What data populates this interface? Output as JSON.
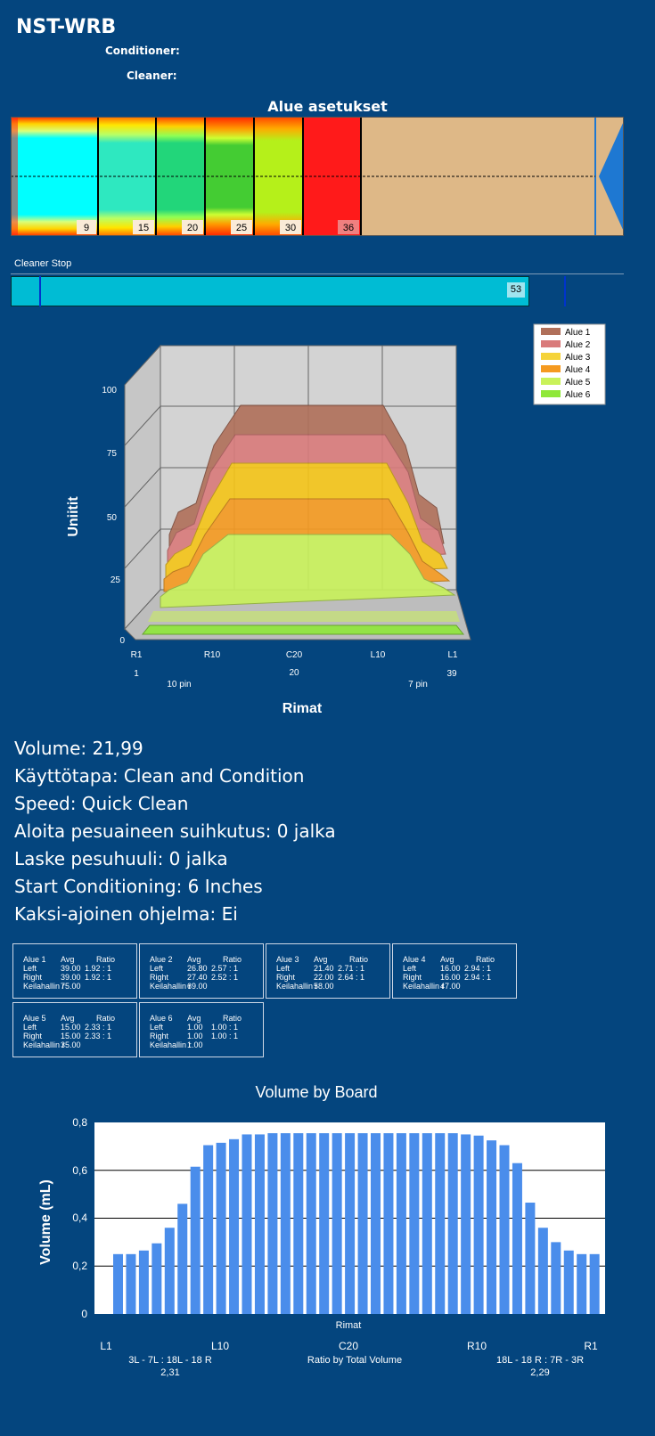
{
  "header": {
    "title": "NST-WRB",
    "conditioner_label": "Conditioner:",
    "cleaner_label": "Cleaner:"
  },
  "zones_section": {
    "title": "Alue asetukset",
    "boundaries": [
      "9",
      "15",
      "20",
      "25",
      "30",
      "36"
    ]
  },
  "cleaner_stop": {
    "label": "Cleaner Stop",
    "value": "53"
  },
  "chart3d": {
    "ylabel": "Uniitit",
    "xlabel": "Rimat",
    "yticks": [
      "100",
      "75",
      "50",
      "25",
      "0"
    ],
    "xticks": [
      "R1",
      "R10",
      "C20",
      "L10",
      "L1"
    ],
    "xnums": [
      "1",
      "20",
      "39"
    ],
    "pins": [
      "10 pin",
      "7 pin"
    ],
    "legend": [
      "Alue 1",
      "Alue 2",
      "Alue 3",
      "Alue 4",
      "Alue 5",
      "Alue 6"
    ],
    "colors": [
      "#B0705A",
      "#D97B7B",
      "#F5C518",
      "#F59A20",
      "#C9F25A",
      "#8FE83A"
    ]
  },
  "chart_data": [
    {
      "type": "area",
      "title": "",
      "xlabel": "Rimat",
      "ylabel": "Uniitit",
      "ylim": [
        0,
        100
      ],
      "x": [
        "R1",
        "R10",
        "C20",
        "L10",
        "L1"
      ],
      "series": [
        {
          "name": "Alue 1",
          "values": [
            39,
            88,
            88,
            88,
            39
          ]
        },
        {
          "name": "Alue 2",
          "values": [
            26.8,
            75,
            75,
            75,
            27.4
          ]
        },
        {
          "name": "Alue 3",
          "values": [
            21.4,
            62,
            62,
            62,
            22
          ]
        },
        {
          "name": "Alue 4",
          "values": [
            16,
            49,
            49,
            49,
            16
          ]
        },
        {
          "name": "Alue 5",
          "values": [
            15,
            35,
            35,
            35,
            15
          ]
        },
        {
          "name": "Alue 6",
          "values": [
            1,
            1,
            1,
            1,
            1
          ]
        }
      ]
    },
    {
      "type": "bar",
      "title": "Volume by Board",
      "xlabel": "Rimat",
      "ylabel": "Volume (mL)",
      "ylim": [
        0,
        0.8
      ],
      "yticks": [
        "0,8",
        "0,6",
        "0,4",
        "0,2",
        "0"
      ],
      "values": [
        0.25,
        0.25,
        0.265,
        0.295,
        0.36,
        0.46,
        0.615,
        0.705,
        0.715,
        0.73,
        0.75,
        0.75,
        0.755,
        0.755,
        0.755,
        0.755,
        0.755,
        0.755,
        0.755,
        0.755,
        0.755,
        0.755,
        0.755,
        0.755,
        0.755,
        0.755,
        0.755,
        0.75,
        0.745,
        0.725,
        0.705,
        0.63,
        0.465,
        0.36,
        0.3,
        0.265,
        0.25,
        0.25
      ],
      "bottom_labels": [
        "L1",
        "L10",
        "C20",
        "R10",
        "R1"
      ],
      "ratio_title": "Ratio by Total Volume",
      "left_ratio_label": "3L - 7L : 18L - 18 R",
      "left_ratio_value": "2,31",
      "right_ratio_label": "18L - 18 R : 7R - 3R",
      "right_ratio_value": "2,29"
    }
  ],
  "info": {
    "volume": "Volume: 21,99",
    "mode": "Käyttötapa: Clean and Condition",
    "speed": "Speed: Quick Clean",
    "spray": "Aloita pesuaineen suihkutus: 0 jalka",
    "lower": "Laske pesuhuuli: 0 jalka",
    "start": "Start Conditioning: 6 Inches",
    "dual": "Kaksi-ajoinen ohjelma: Ei"
  },
  "zone_table": [
    {
      "name": "Alue 1",
      "avg_h": "Avg",
      "ratio_h": "Ratio",
      "left": "Left",
      "left_avg": "39.00",
      "left_ratio": "1.92 : 1",
      "right": "Right",
      "right_avg": "39.00",
      "right_ratio": "1.92 : 1",
      "keil": "Keilahallin r",
      "keil_v": "75.00"
    },
    {
      "name": "Alue 2",
      "avg_h": "Avg",
      "ratio_h": "Ratio",
      "left": "Left",
      "left_avg": "26.80",
      "left_ratio": "2.57 : 1",
      "right": "Right",
      "right_avg": "27.40",
      "right_ratio": "2.52 : 1",
      "keil": "Keilahallin r",
      "keil_v": "69.00"
    },
    {
      "name": "Alue 3",
      "avg_h": "Avg",
      "ratio_h": "Ratio",
      "left": "Left",
      "left_avg": "21.40",
      "left_ratio": "2.71 : 1",
      "right": "Right",
      "right_avg": "22.00",
      "right_ratio": "2.64 : 1",
      "keil": "Keilahallin r",
      "keil_v": "58.00"
    },
    {
      "name": "Alue 4",
      "avg_h": "Avg",
      "ratio_h": "Ratio",
      "left": "Left",
      "left_avg": "16.00",
      "left_ratio": "2.94 : 1",
      "right": "Right",
      "right_avg": "16.00",
      "right_ratio": "2.94 : 1",
      "keil": "Keilahallin r",
      "keil_v": "47.00"
    },
    {
      "name": "Alue 5",
      "avg_h": "Avg",
      "ratio_h": "Ratio",
      "left": "Left",
      "left_avg": "15.00",
      "left_ratio": "2.33 : 1",
      "right": "Right",
      "right_avg": "15.00",
      "right_ratio": "2.33 : 1",
      "keil": "Keilahallin r",
      "keil_v": "35.00"
    },
    {
      "name": "Alue 6",
      "avg_h": "Avg",
      "ratio_h": "Ratio",
      "left": "Left",
      "left_avg": "1.00",
      "left_ratio": "1.00 : 1",
      "right": "Right",
      "right_avg": "1.00",
      "right_ratio": "1.00 : 1",
      "keil": "Keilahallin r",
      "keil_v": "1.00"
    }
  ]
}
